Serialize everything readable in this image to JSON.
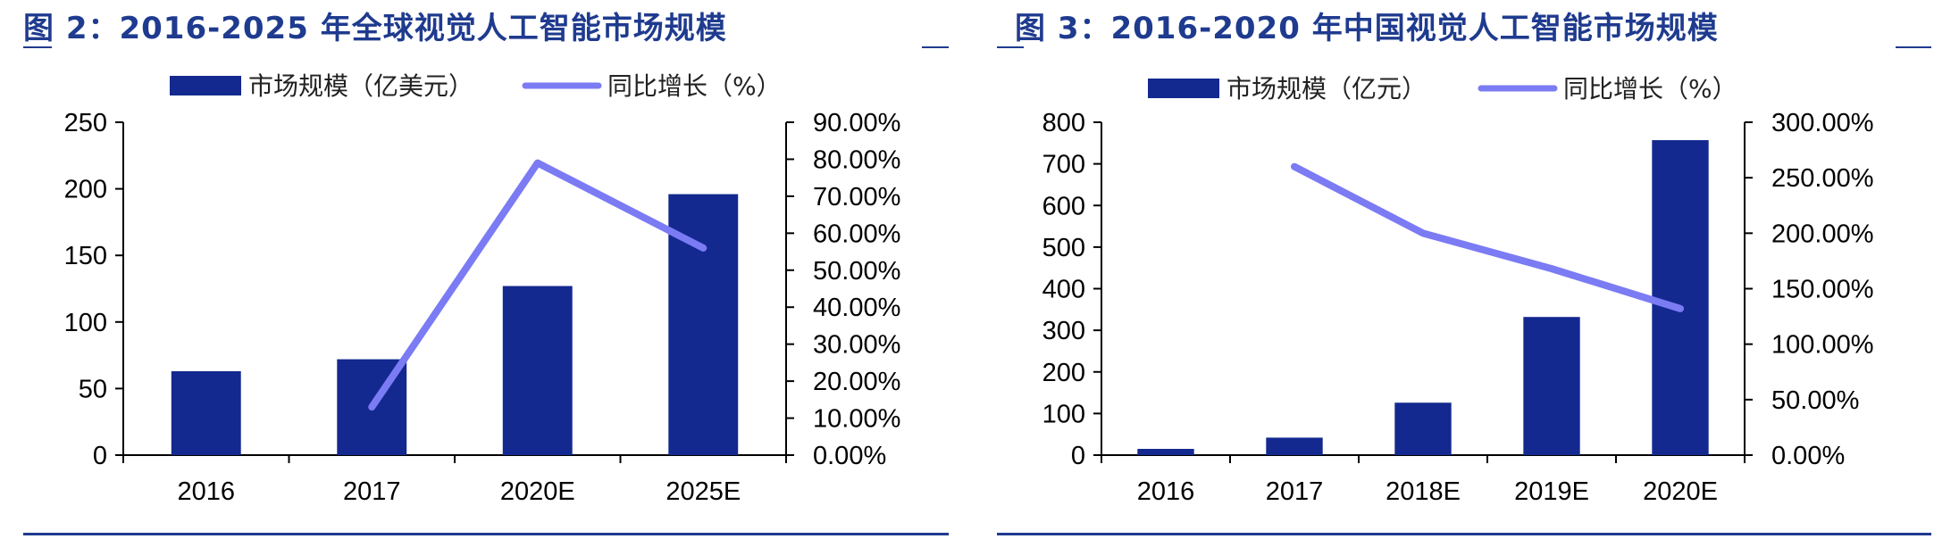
{
  "colors": {
    "bar": "#13298f",
    "line": "#7b7bf4",
    "title": "#1f3b8f",
    "axis": "#000000"
  },
  "chart_data": [
    {
      "type": "bar",
      "title": "图 2：2016-2025 年全球视觉人工智能市场规模",
      "categories": [
        "2016",
        "2017",
        "2020E",
        "2025E"
      ],
      "series": [
        {
          "name": "市场规模（亿美元）",
          "type": "bar",
          "axis": "left",
          "values": [
            63,
            72,
            127,
            196
          ]
        },
        {
          "name": "同比增长（%）",
          "type": "line",
          "axis": "right",
          "values": [
            null,
            13.0,
            79.0,
            56.0
          ]
        }
      ],
      "y_left": {
        "min": 0,
        "max": 250,
        "ticks": [
          "0",
          "50",
          "100",
          "150",
          "200",
          "250"
        ]
      },
      "y_right": {
        "min": 0,
        "max": 90,
        "ticks": [
          "0.00%",
          "10.00%",
          "20.00%",
          "30.00%",
          "40.00%",
          "50.00%",
          "60.00%",
          "70.00%",
          "80.00%",
          "90.00%"
        ]
      },
      "grid": false,
      "legend": "top"
    },
    {
      "type": "bar",
      "title": "图 3：2016-2020 年中国视觉人工智能市场规模",
      "categories": [
        "2016",
        "2017",
        "2018E",
        "2019E",
        "2020E"
      ],
      "series": [
        {
          "name": "市场规模（亿元）",
          "type": "bar",
          "axis": "left",
          "values": [
            15,
            42,
            126,
            332,
            757
          ]
        },
        {
          "name": "同比增长（%）",
          "type": "line",
          "axis": "right",
          "values": [
            null,
            260,
            200,
            168,
            132
          ]
        }
      ],
      "y_left": {
        "min": 0,
        "max": 800,
        "ticks": [
          "0",
          "100",
          "200",
          "300",
          "400",
          "500",
          "600",
          "700",
          "800"
        ]
      },
      "y_right": {
        "min": 0,
        "max": 300,
        "ticks": [
          "0.00%",
          "50.00%",
          "100.00%",
          "150.00%",
          "200.00%",
          "250.00%",
          "300.00%"
        ]
      },
      "grid": false,
      "legend": "top"
    }
  ]
}
